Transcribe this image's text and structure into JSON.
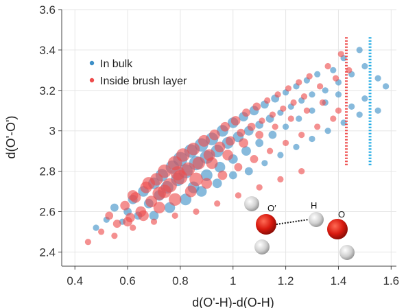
{
  "chart_data": {
    "type": "scatter",
    "title": "",
    "xlabel": "d(O'-H)-d(O-H)",
    "ylabel": "d(O'-O')",
    "xlim": [
      0.35,
      1.62
    ],
    "ylim": [
      2.33,
      3.6
    ],
    "xticks": [
      "0.4",
      "0.6",
      "0.8",
      "1",
      "1.2",
      "1.4",
      "1.6"
    ],
    "xtick_values": [
      0.4,
      0.6,
      0.8,
      1.0,
      1.2,
      1.4,
      1.6
    ],
    "yticks": [
      "2.4",
      "2.6",
      "2.8",
      "3",
      "3.2",
      "3.4",
      "3.6"
    ],
    "ytick_values": [
      2.4,
      2.6,
      2.8,
      3.0,
      3.2,
      3.4,
      3.6
    ],
    "grid": true,
    "legend_position": "top-left",
    "series": [
      {
        "name": "In bulk",
        "color": "#3d8fc7",
        "marker_size_encoding": "point density",
        "points": [
          [
            0.48,
            2.52,
            1
          ],
          [
            0.52,
            2.56,
            1
          ],
          [
            0.55,
            2.62,
            2
          ],
          [
            0.58,
            2.55,
            1
          ],
          [
            0.6,
            2.6,
            2
          ],
          [
            0.62,
            2.66,
            3
          ],
          [
            0.64,
            2.58,
            2
          ],
          [
            0.66,
            2.7,
            4
          ],
          [
            0.68,
            2.64,
            3
          ],
          [
            0.7,
            2.74,
            5
          ],
          [
            0.72,
            2.68,
            4
          ],
          [
            0.73,
            2.78,
            6
          ],
          [
            0.75,
            2.72,
            6
          ],
          [
            0.77,
            2.82,
            7
          ],
          [
            0.79,
            2.76,
            7
          ],
          [
            0.8,
            2.86,
            8
          ],
          [
            0.82,
            2.8,
            8
          ],
          [
            0.84,
            2.9,
            7
          ],
          [
            0.86,
            2.84,
            8
          ],
          [
            0.88,
            2.93,
            7
          ],
          [
            0.9,
            2.87,
            7
          ],
          [
            0.92,
            2.96,
            6
          ],
          [
            0.94,
            2.9,
            6
          ],
          [
            0.96,
            3.0,
            5
          ],
          [
            0.98,
            2.94,
            5
          ],
          [
            1.0,
            3.04,
            4
          ],
          [
            1.02,
            2.97,
            4
          ],
          [
            1.04,
            3.07,
            3
          ],
          [
            1.06,
            3.0,
            3
          ],
          [
            1.08,
            3.1,
            3
          ],
          [
            1.1,
            3.03,
            2
          ],
          [
            1.12,
            3.13,
            2
          ],
          [
            1.14,
            3.06,
            2
          ],
          [
            1.16,
            3.16,
            2
          ],
          [
            1.18,
            3.09,
            1
          ],
          [
            1.2,
            3.19,
            1
          ],
          [
            1.22,
            3.12,
            1
          ],
          [
            1.24,
            3.22,
            1
          ],
          [
            1.26,
            3.15,
            1
          ],
          [
            1.28,
            3.25,
            1
          ],
          [
            1.3,
            3.18,
            1
          ],
          [
            1.32,
            3.28,
            1
          ],
          [
            1.35,
            3.2,
            1
          ],
          [
            1.38,
            3.3,
            1
          ],
          [
            1.4,
            3.24,
            1
          ],
          [
            1.42,
            3.36,
            1
          ],
          [
            1.45,
            3.28,
            1
          ],
          [
            1.48,
            3.4,
            1
          ],
          [
            1.5,
            3.32,
            1
          ],
          [
            1.55,
            3.26,
            1
          ],
          [
            1.58,
            3.22,
            1
          ],
          [
            0.85,
            2.72,
            5
          ],
          [
            0.9,
            2.78,
            5
          ],
          [
            0.95,
            2.82,
            4
          ],
          [
            1.0,
            2.86,
            3
          ],
          [
            1.05,
            2.9,
            3
          ],
          [
            1.1,
            2.94,
            2
          ],
          [
            1.15,
            2.98,
            2
          ],
          [
            1.2,
            3.02,
            1
          ],
          [
            1.25,
            3.06,
            1
          ],
          [
            1.3,
            3.1,
            1
          ],
          [
            1.35,
            3.14,
            1
          ],
          [
            1.4,
            3.18,
            1
          ],
          [
            1.45,
            3.12,
            1
          ],
          [
            1.5,
            3.16,
            1
          ],
          [
            1.55,
            3.1,
            1
          ],
          [
            0.7,
            2.58,
            3
          ],
          [
            0.76,
            2.62,
            4
          ],
          [
            0.82,
            2.66,
            5
          ],
          [
            0.88,
            2.7,
            4
          ],
          [
            0.94,
            2.74,
            3
          ],
          [
            1.0,
            2.78,
            2
          ],
          [
            1.06,
            2.8,
            2
          ],
          [
            1.12,
            2.84,
            1
          ],
          [
            1.18,
            2.88,
            1
          ],
          [
            1.24,
            2.92,
            1
          ],
          [
            1.3,
            2.96,
            1
          ],
          [
            1.36,
            3.0,
            1
          ],
          [
            1.42,
            3.04,
            1
          ],
          [
            1.48,
            3.08,
            1
          ]
        ]
      },
      {
        "name": "Inside brush layer",
        "color": "#ee4c4c",
        "marker_size_encoding": "point density",
        "points": [
          [
            0.45,
            2.45,
            1
          ],
          [
            0.5,
            2.5,
            1
          ],
          [
            0.53,
            2.58,
            2
          ],
          [
            0.56,
            2.54,
            2
          ],
          [
            0.59,
            2.63,
            3
          ],
          [
            0.61,
            2.57,
            3
          ],
          [
            0.63,
            2.67,
            4
          ],
          [
            0.65,
            2.6,
            4
          ],
          [
            0.67,
            2.72,
            5
          ],
          [
            0.69,
            2.65,
            5
          ],
          [
            0.71,
            2.76,
            6
          ],
          [
            0.72,
            2.69,
            7
          ],
          [
            0.74,
            2.8,
            7
          ],
          [
            0.76,
            2.73,
            8
          ],
          [
            0.78,
            2.84,
            8
          ],
          [
            0.8,
            2.77,
            8
          ],
          [
            0.81,
            2.88,
            7
          ],
          [
            0.83,
            2.81,
            7
          ],
          [
            0.85,
            2.91,
            6
          ],
          [
            0.87,
            2.84,
            6
          ],
          [
            0.89,
            2.95,
            5
          ],
          [
            0.91,
            2.88,
            5
          ],
          [
            0.93,
            2.98,
            4
          ],
          [
            0.95,
            2.92,
            4
          ],
          [
            0.97,
            3.02,
            3
          ],
          [
            0.99,
            2.95,
            3
          ],
          [
            1.01,
            3.05,
            3
          ],
          [
            1.03,
            2.99,
            2
          ],
          [
            1.05,
            3.09,
            2
          ],
          [
            1.07,
            3.02,
            2
          ],
          [
            1.09,
            3.12,
            2
          ],
          [
            1.11,
            3.05,
            1
          ],
          [
            1.13,
            3.15,
            1
          ],
          [
            1.15,
            3.08,
            1
          ],
          [
            1.17,
            3.18,
            1
          ],
          [
            1.19,
            3.11,
            1
          ],
          [
            1.21,
            3.21,
            1
          ],
          [
            1.23,
            3.14,
            1
          ],
          [
            1.25,
            3.24,
            1
          ],
          [
            1.27,
            3.17,
            1
          ],
          [
            1.29,
            3.27,
            1
          ],
          [
            1.33,
            3.22,
            1
          ],
          [
            1.36,
            3.32,
            1
          ],
          [
            1.39,
            3.26,
            1
          ],
          [
            1.41,
            3.38,
            1
          ],
          [
            1.44,
            3.3,
            1
          ],
          [
            0.6,
            2.55,
            3
          ],
          [
            0.66,
            2.58,
            4
          ],
          [
            0.72,
            2.62,
            5
          ],
          [
            0.78,
            2.66,
            6
          ],
          [
            0.84,
            2.7,
            5
          ],
          [
            0.9,
            2.74,
            4
          ],
          [
            0.96,
            2.78,
            3
          ],
          [
            1.02,
            2.82,
            2
          ],
          [
            1.08,
            2.86,
            2
          ],
          [
            1.14,
            2.9,
            1
          ],
          [
            1.2,
            2.94,
            1
          ],
          [
            1.26,
            2.98,
            1
          ],
          [
            1.32,
            3.02,
            1
          ],
          [
            1.38,
            3.06,
            1
          ],
          [
            0.62,
            2.68,
            4
          ],
          [
            0.68,
            2.74,
            6
          ],
          [
            0.74,
            2.7,
            7
          ],
          [
            0.79,
            2.79,
            8
          ],
          [
            0.86,
            2.76,
            7
          ],
          [
            0.92,
            2.84,
            5
          ],
          [
            0.98,
            2.88,
            4
          ],
          [
            1.04,
            2.94,
            3
          ],
          [
            1.1,
            2.98,
            2
          ],
          [
            1.16,
            3.02,
            1
          ],
          [
            1.22,
            3.06,
            1
          ],
          [
            1.28,
            3.1,
            1
          ],
          [
            1.34,
            3.14,
            1
          ],
          [
            1.4,
            3.1,
            1
          ],
          [
            0.55,
            2.48,
            1
          ],
          [
            0.62,
            2.52,
            1
          ],
          [
            0.7,
            2.55,
            1
          ],
          [
            0.78,
            2.58,
            1
          ],
          [
            0.86,
            2.6,
            1
          ],
          [
            0.94,
            2.64,
            1
          ],
          [
            1.02,
            2.68,
            1
          ],
          [
            1.1,
            2.72,
            1
          ],
          [
            1.18,
            2.76,
            1
          ],
          [
            1.26,
            2.8,
            1
          ]
        ]
      }
    ],
    "reference_lines": [
      {
        "x": 1.43,
        "y_range": [
          2.83,
          3.47
        ],
        "color": "#ee4c4c",
        "style": "dotted"
      },
      {
        "x": 1.52,
        "y_range": [
          2.83,
          3.47
        ],
        "color": "#1ea9e3",
        "style": "dotted"
      }
    ]
  },
  "legend": {
    "items": [
      {
        "label": "In bulk",
        "color": "#3d8fc7"
      },
      {
        "label": "Inside brush layer",
        "color": "#ee4c4c"
      }
    ]
  },
  "molecule_inset": {
    "labels": {
      "o_prime": "O′",
      "h": "H",
      "o": "O"
    },
    "colors": {
      "oxygen": "#d91a0f",
      "hydrogen": "#cfcfcf",
      "hbond": "#111111"
    }
  }
}
